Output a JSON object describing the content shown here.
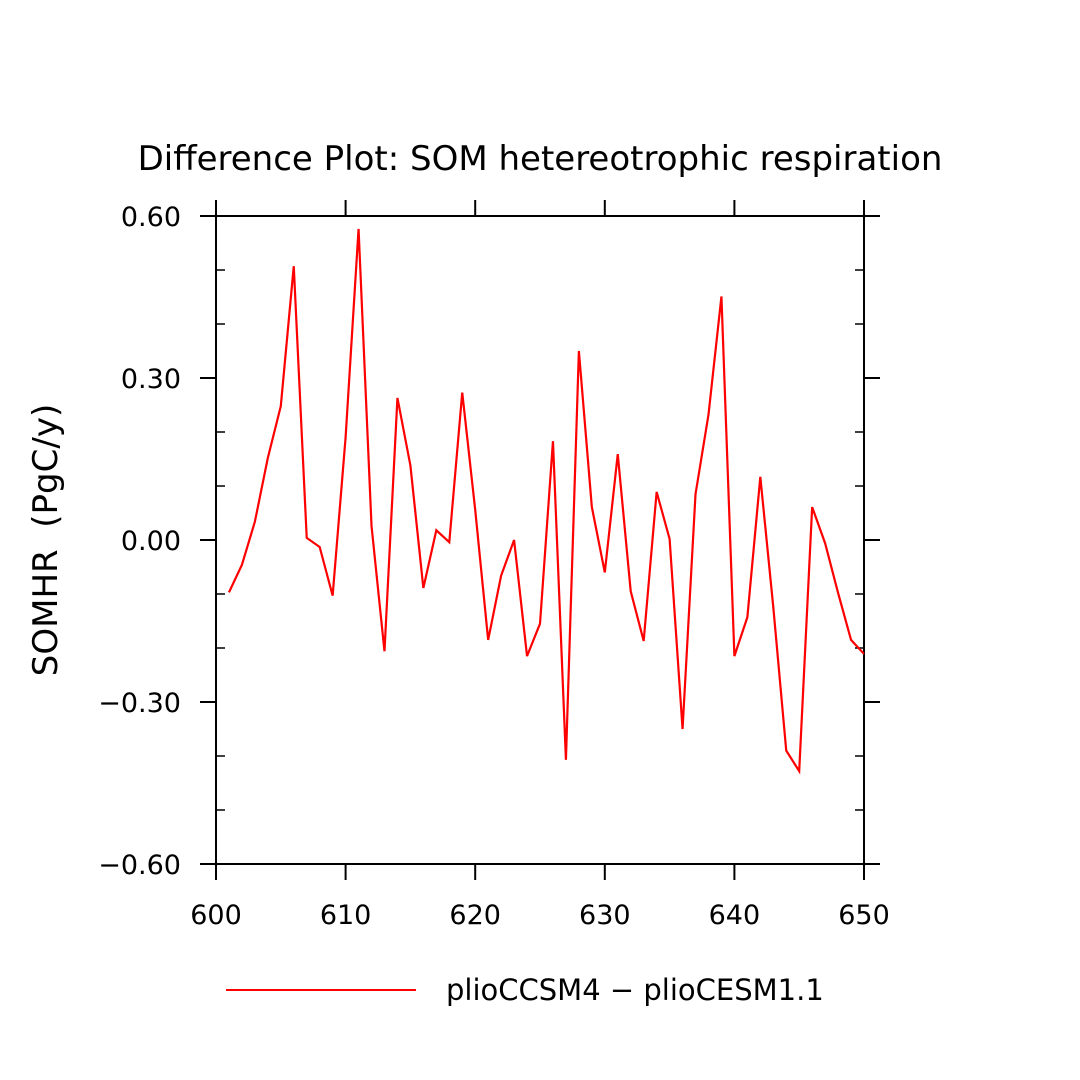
{
  "chart_data": {
    "type": "line",
    "title": "Difference Plot: SOM hetereotrophic respiration",
    "xlabel": "",
    "ylabel": "SOMHR  (PgC/y)",
    "xlim": [
      600,
      650
    ],
    "ylim": [
      -0.6,
      0.6
    ],
    "x_ticks": [
      600,
      610,
      620,
      630,
      640,
      650
    ],
    "x_tick_labels": [
      "600",
      "610",
      "620",
      "630",
      "640",
      "650"
    ],
    "y_ticks": [
      0.6,
      0.3,
      0.0,
      -0.3,
      -0.6
    ],
    "y_tick_labels": [
      "0.60",
      "0.30",
      "0.00",
      "−0.30",
      "−0.60"
    ],
    "y_minor_step": 0.1,
    "grid": false,
    "legend_position": "bottom",
    "series": [
      {
        "name": "plioCCSM4 − plioCESM1.1",
        "color": "#ff0000",
        "x": [
          601,
          602,
          603,
          604,
          605,
          606,
          607,
          608,
          609,
          610,
          611,
          612,
          613,
          614,
          615,
          616,
          617,
          618,
          619,
          620,
          621,
          622,
          623,
          624,
          625,
          626,
          627,
          628,
          629,
          630,
          631,
          632,
          633,
          634,
          635,
          636,
          637,
          638,
          639,
          640,
          641,
          642,
          643,
          644,
          645,
          646,
          647,
          648,
          649,
          650
        ],
        "values": [
          -0.097,
          -0.046,
          0.034,
          0.152,
          0.248,
          0.507,
          0.004,
          -0.013,
          -0.103,
          0.19,
          0.576,
          0.026,
          -0.206,
          0.263,
          0.138,
          -0.089,
          0.018,
          -0.004,
          0.273,
          0.056,
          -0.185,
          -0.066,
          0.0,
          -0.215,
          -0.155,
          0.183,
          -0.407,
          0.35,
          0.061,
          -0.06,
          0.159,
          -0.095,
          -0.187,
          0.089,
          0.002,
          -0.35,
          0.085,
          0.232,
          0.451,
          -0.215,
          -0.143,
          0.117,
          -0.124,
          -0.39,
          -0.428,
          0.061,
          -0.006,
          -0.098,
          -0.185,
          -0.211
        ]
      }
    ]
  }
}
